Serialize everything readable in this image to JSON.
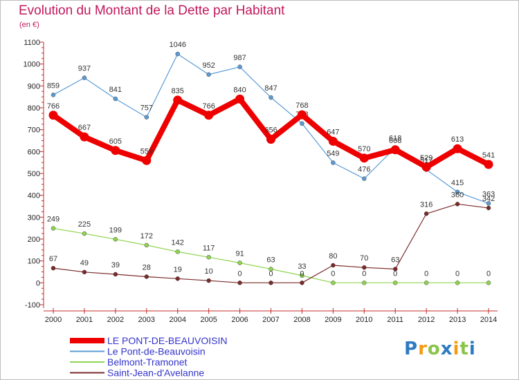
{
  "title": "Evolution du Montant de la Dette par Habitant",
  "subtitle": "(en €)",
  "logo": {
    "text": "Proxiti",
    "letters": [
      "P",
      "r",
      "o",
      "x",
      "i",
      "t",
      "i"
    ],
    "colors": [
      "#2e7bc4",
      "#f39c12",
      "#8bc34a",
      "#2e7bc4",
      "#f39c12",
      "#8bc34a",
      "#2e7bc4"
    ]
  },
  "chart_data": {
    "type": "line",
    "title": "Evolution du Montant de la Dette par Habitant",
    "ylabel": "(en €)",
    "xlabel": "",
    "ylim": [
      -100,
      1100
    ],
    "yticks": [
      -100,
      0,
      100,
      200,
      300,
      400,
      500,
      600,
      700,
      800,
      900,
      1000,
      1100
    ],
    "grid": false,
    "legend": "bottom-left",
    "x": [
      "2000",
      "2001",
      "2002",
      "2003",
      "2004",
      "2005",
      "2006",
      "2007",
      "2008",
      "2009",
      "2010",
      "2011",
      "2012",
      "2013",
      "2014"
    ],
    "series": [
      {
        "name": "Le Pont-de-Beauvoisin",
        "color": "#5b9bd5",
        "bold": false,
        "values": [
          859,
          937,
          841,
          757,
          1046,
          952,
          987,
          847,
          728,
          549,
          476,
          618,
          517,
          415,
          363
        ]
      },
      {
        "name": "Belmont-Tramonet",
        "color": "#8fd44f",
        "bold": false,
        "values": [
          249,
          225,
          199,
          172,
          142,
          117,
          91,
          63,
          33,
          0,
          0,
          0,
          0,
          0,
          0
        ]
      },
      {
        "name": "Saint-Jean-d'Avelanne",
        "color": "#7b2a2a",
        "bold": false,
        "values": [
          67,
          49,
          39,
          28,
          19,
          10,
          0,
          0,
          0,
          80,
          70,
          63,
          316,
          360,
          342
        ]
      },
      {
        "name": "LE PONT-DE-BEAUVOISIN",
        "color": "#ee0000",
        "bold": true,
        "values": [
          766,
          667,
          605,
          559,
          835,
          766,
          840,
          656,
          768,
          647,
          570,
          608,
          529,
          613,
          541
        ]
      }
    ]
  }
}
